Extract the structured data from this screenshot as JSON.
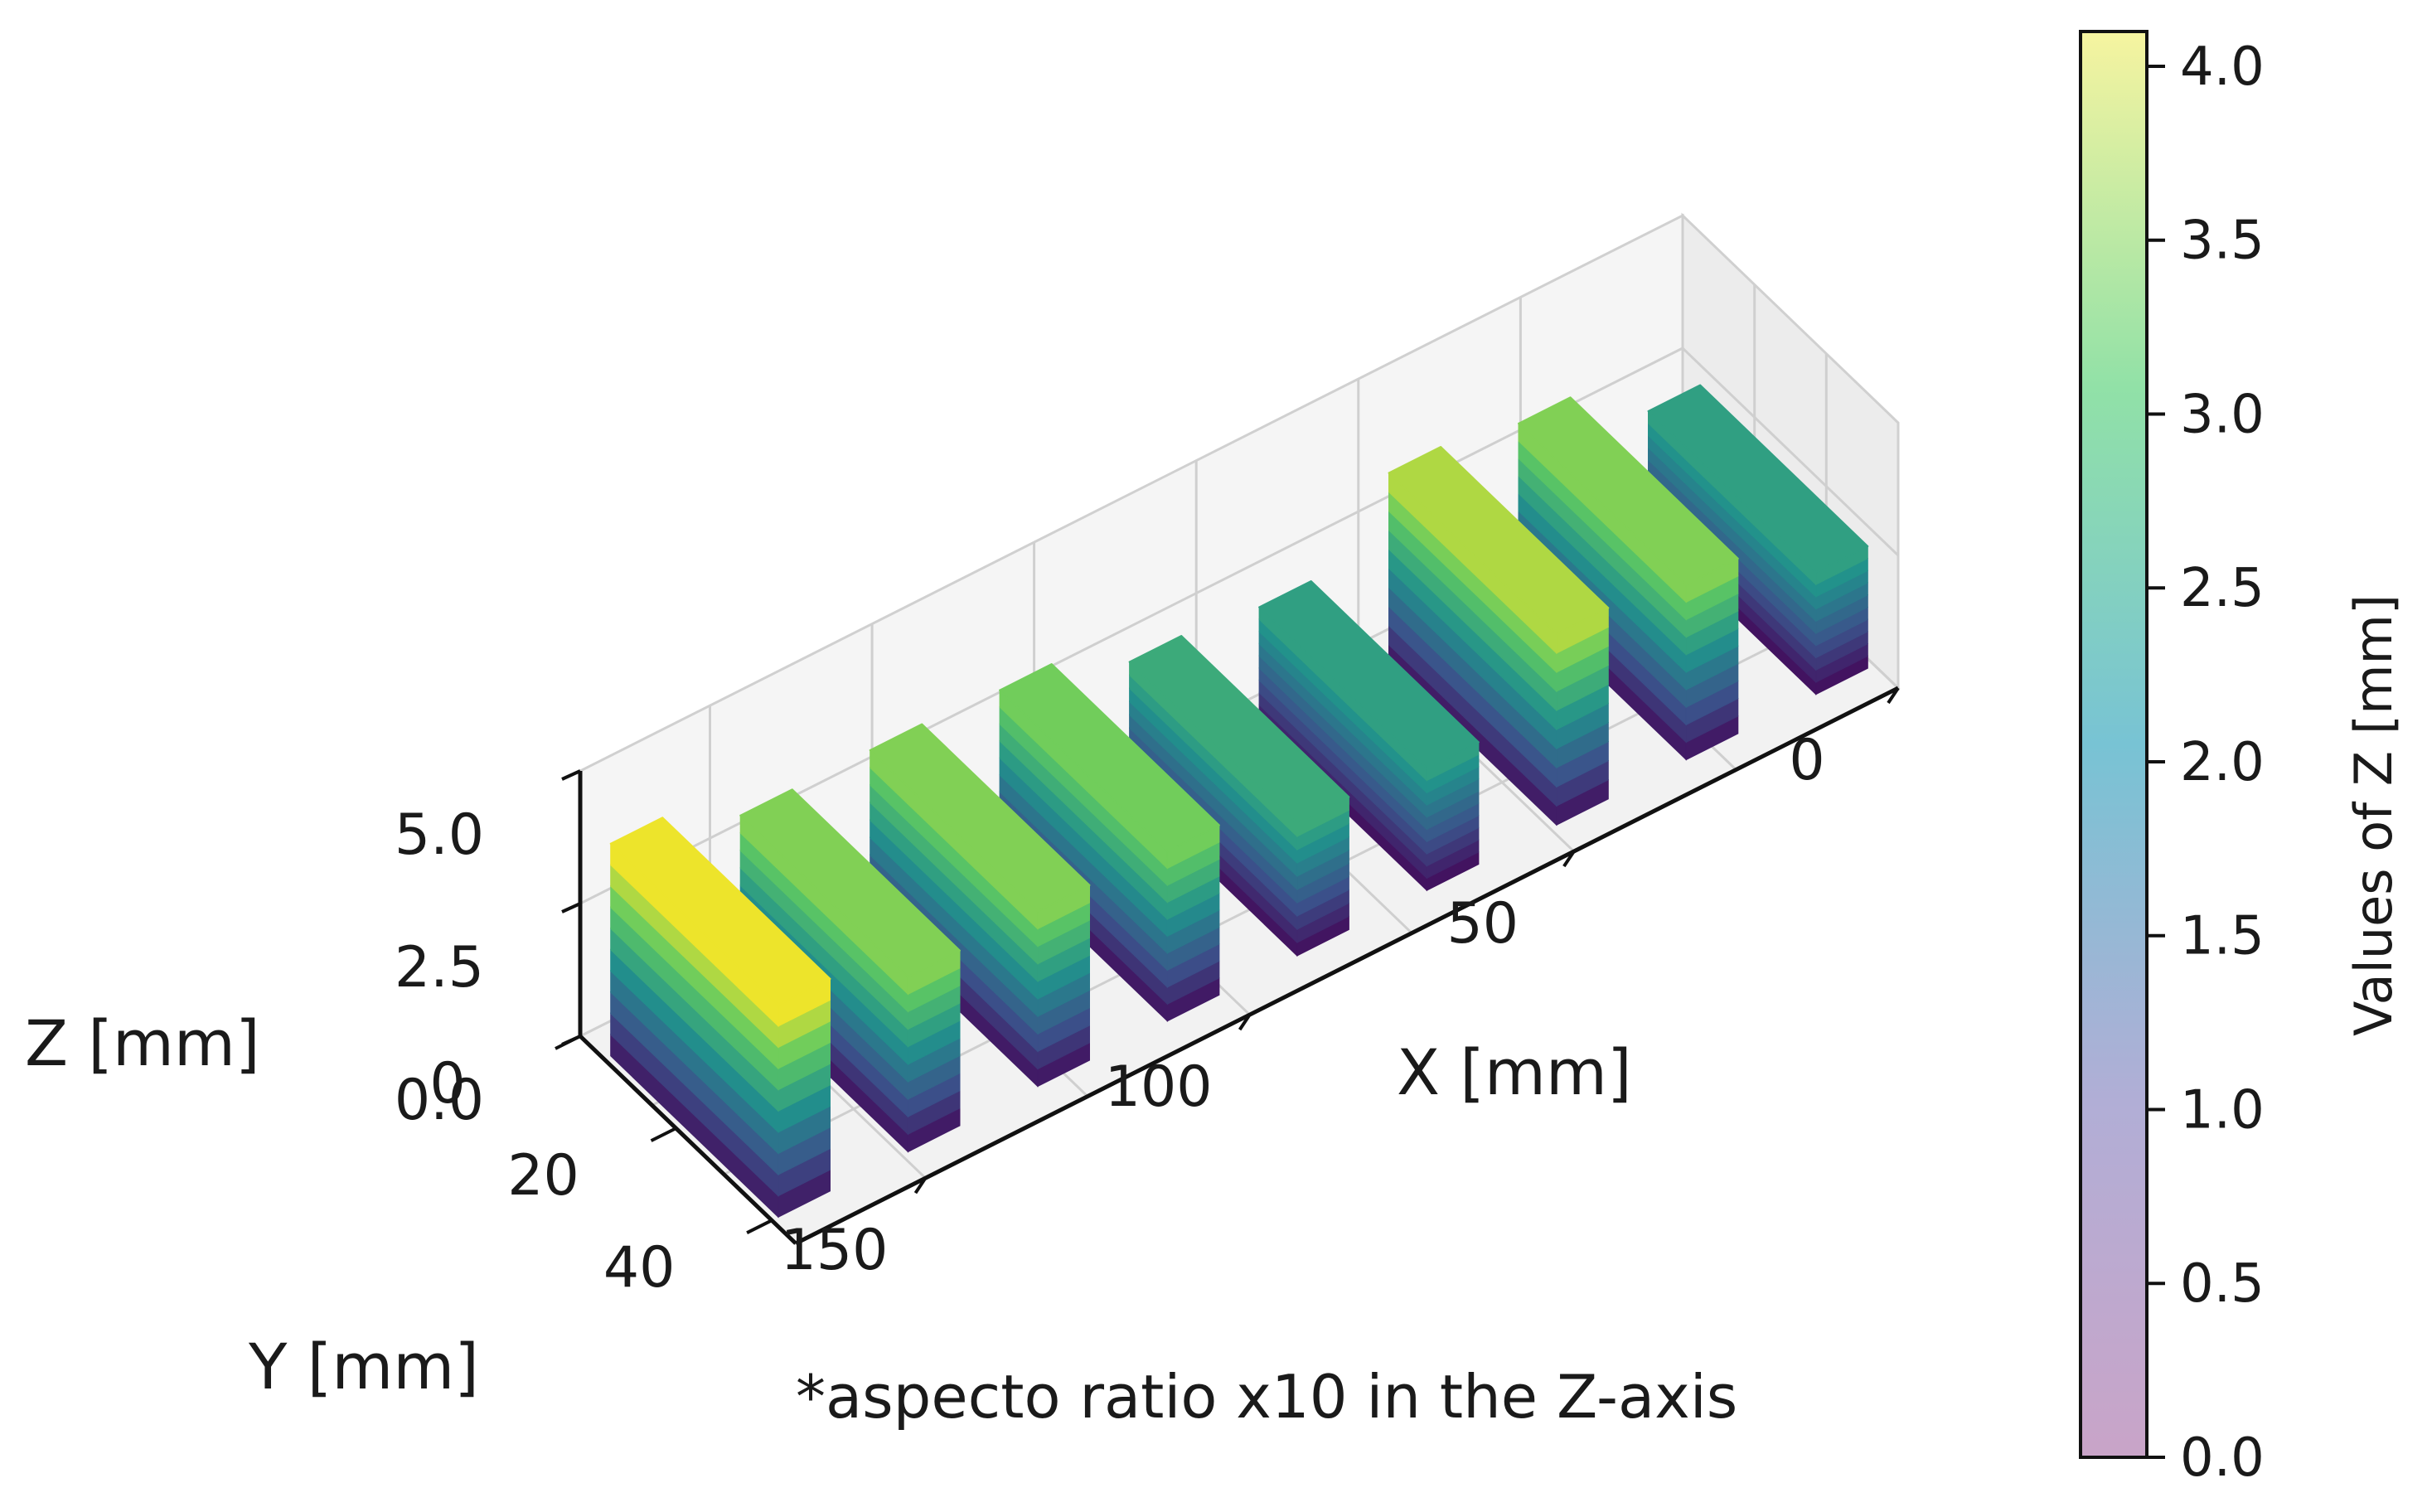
{
  "chart_data": {
    "type": "surface3d",
    "x_axis": {
      "label": "X [mm]",
      "ticks": [
        "0",
        "50",
        "100",
        "150"
      ],
      "range": [
        0,
        170
      ]
    },
    "y_axis": {
      "label": "Y [mm]",
      "ticks": [
        "0",
        "20",
        "40"
      ],
      "range": [
        0,
        45
      ]
    },
    "z_axis": {
      "label": "Z [mm]",
      "ticks": [
        "0.0",
        "2.5",
        "5.0"
      ],
      "range": [
        0,
        5
      ]
    },
    "series": [
      {
        "x": 5,
        "max_z": 2.3
      },
      {
        "x": 25,
        "max_z": 3.3
      },
      {
        "x": 45,
        "max_z": 3.6
      },
      {
        "x": 65,
        "max_z": 2.3
      },
      {
        "x": 85,
        "max_z": 2.5
      },
      {
        "x": 105,
        "max_z": 3.2
      },
      {
        "x": 125,
        "max_z": 3.3
      },
      {
        "x": 145,
        "max_z": 3.3
      },
      {
        "x": 165,
        "max_z": 4.0
      }
    ],
    "colorbar": {
      "label": "Values of Z [mm]",
      "ticks": [
        "0.0",
        "0.5",
        "1.0",
        "1.5",
        "2.0",
        "2.5",
        "3.0",
        "3.5",
        "4.0"
      ],
      "range": [
        0,
        4.1
      ],
      "colormap": "viridis"
    },
    "annotation": "*aspecto ratio x10 in the Z-axis",
    "grid": true
  }
}
